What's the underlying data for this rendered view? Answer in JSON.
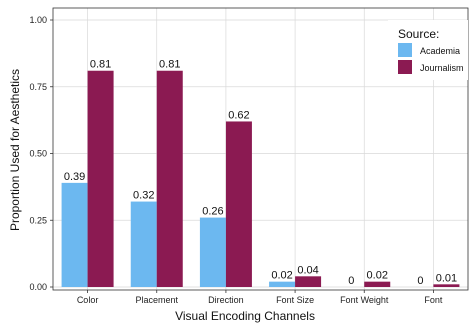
{
  "chart_data": {
    "type": "bar",
    "categories": [
      "Color",
      "Placement",
      "Direction",
      "Font Size",
      "Font Weight",
      "Font"
    ],
    "series": [
      {
        "name": "Academia",
        "color": "#6cb8f0",
        "values": [
          0.39,
          0.32,
          0.26,
          0.02,
          0,
          0
        ],
        "labels": [
          "0.39",
          "0.32",
          "0.26",
          "0.02",
          "0",
          "0"
        ]
      },
      {
        "name": "Journalism",
        "color": "#8b1a52",
        "values": [
          0.81,
          0.81,
          0.62,
          0.04,
          0.02,
          0.01
        ],
        "labels": [
          "0.81",
          "0.81",
          "0.62",
          "0.04",
          "0.02",
          "0.01"
        ]
      }
    ],
    "xlabel": "Visual Encoding Channels",
    "ylabel": "Proportion Used for Aesthetics",
    "ylim": [
      0,
      1.0
    ],
    "yticks": [
      0,
      0.25,
      0.5,
      0.75,
      1.0
    ],
    "ytick_labels": [
      "0.00",
      "0.25",
      "0.50",
      "0.75",
      "1.00"
    ],
    "legend": {
      "title": "Source:",
      "position": "top-right"
    },
    "grid": true
  }
}
